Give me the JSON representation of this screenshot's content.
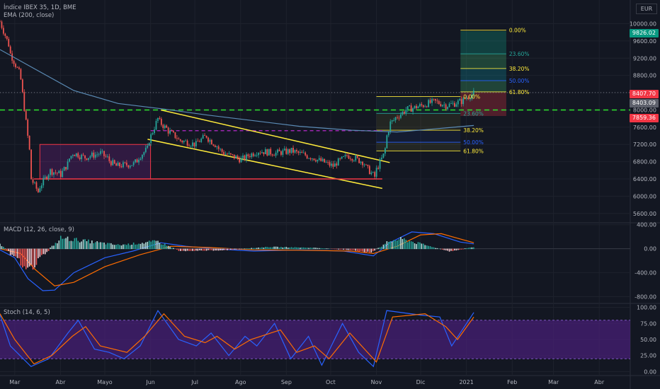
{
  "header": {
    "symbol_line": "Índice IBEX 35, 1D, BME",
    "ema_line": "EMA (200, close)",
    "currency": "EUR"
  },
  "colors": {
    "background": "#131722",
    "grid": "#1e222d",
    "up": "#26a69a",
    "down": "#ef5350",
    "ema": "#5b8bb5",
    "channel": "#ffeb3b",
    "support": "#f23645",
    "green_dash": "#2ee62e",
    "purple_dash": "#9c27b0",
    "macd_line": "#2962ff",
    "signal_line": "#ff6d00",
    "stoch_k": "#2962ff",
    "stoch_d": "#ff6d00",
    "stoch_band": "#4a1f7a"
  },
  "price_tags": [
    {
      "label": "9826.02",
      "color": "#089981"
    },
    {
      "label": "8407.70",
      "color": "#f23645"
    },
    {
      "label": "8403.09",
      "color": "#5d606b"
    },
    {
      "label": "7859.36",
      "color": "#f23645"
    }
  ],
  "fib_labels": {
    "upper": [
      "0.00%",
      "23.60%",
      "38.20%",
      "50.00%",
      "61.80%"
    ],
    "lower": [
      "0.00%",
      "23.60%",
      "38.20%",
      "50.00%",
      "61.80%"
    ]
  },
  "chart_data": [
    {
      "type": "candlestick",
      "title": "Índice IBEX 35, 1D, BME",
      "ylim": [
        5400,
        10500
      ],
      "y_ticks": [
        5600,
        6000,
        6400,
        6800,
        7200,
        7600,
        8000,
        8400,
        8800,
        9200,
        9600,
        10000
      ],
      "y_tick_labels": [
        "5600.00",
        "6000.00",
        "6400.00",
        "6800.00",
        "7200.00",
        "7600.00",
        "8000.00",
        "8400.00",
        "8800.00",
        "9200.00",
        "9600.00",
        "10000.00"
      ],
      "x_tick_labels": [
        "Mar",
        "Abr",
        "Mayo",
        "Jun",
        "Jul",
        "Ago",
        "Sep",
        "Oct",
        "Nov",
        "Dic",
        "2021",
        "Feb",
        "Mar",
        "Abr"
      ],
      "price_path": [
        [
          "2020-02-20",
          10050
        ],
        [
          "2020-02-27",
          9300
        ],
        [
          "2020-03-05",
          8700
        ],
        [
          "2020-03-12",
          6400
        ],
        [
          "2020-03-16",
          6100
        ],
        [
          "2020-03-24",
          6600
        ],
        [
          "2020-04-01",
          6500
        ],
        [
          "2020-04-09",
          7000
        ],
        [
          "2020-04-17",
          6900
        ],
        [
          "2020-04-28",
          7000
        ],
        [
          "2020-05-08",
          6700
        ],
        [
          "2020-05-20",
          6750
        ],
        [
          "2020-05-29",
          7100
        ],
        [
          "2020-06-05",
          7800
        ],
        [
          "2020-06-10",
          7600
        ],
        [
          "2020-06-20",
          7300
        ],
        [
          "2020-07-01",
          7200
        ],
        [
          "2020-07-08",
          7400
        ],
        [
          "2020-07-20",
          7000
        ],
        [
          "2020-08-01",
          6850
        ],
        [
          "2020-08-12",
          7050
        ],
        [
          "2020-08-24",
          7000
        ],
        [
          "2020-09-04",
          7050
        ],
        [
          "2020-09-18",
          6900
        ],
        [
          "2020-10-02",
          6700
        ],
        [
          "2020-10-12",
          6950
        ],
        [
          "2020-10-22",
          6800
        ],
        [
          "2020-10-30",
          6450
        ],
        [
          "2020-11-05",
          6950
        ],
        [
          "2020-11-10",
          7700
        ],
        [
          "2020-11-20",
          8000
        ],
        [
          "2020-12-01",
          8100
        ],
        [
          "2020-12-10",
          8200
        ],
        [
          "2020-12-18",
          8100
        ],
        [
          "2020-12-28",
          8200
        ],
        [
          "2021-01-06",
          8404
        ]
      ],
      "ema200_path": [
        [
          "2020-02-20",
          9400
        ],
        [
          "2020-03-12",
          9000
        ],
        [
          "2020-04-10",
          8450
        ],
        [
          "2020-05-10",
          8150
        ],
        [
          "2020-06-10",
          8020
        ],
        [
          "2020-07-10",
          7880
        ],
        [
          "2020-08-10",
          7750
        ],
        [
          "2020-09-10",
          7620
        ],
        [
          "2020-10-15",
          7530
        ],
        [
          "2020-11-15",
          7490
        ],
        [
          "2020-12-10",
          7560
        ],
        [
          "2021-01-06",
          7640
        ]
      ],
      "annotations": {
        "channel_upper": [
          [
            "2020-06-08",
            8000
          ],
          [
            "2020-11-10",
            6780
          ]
        ],
        "channel_lower": [
          [
            "2020-05-30",
            7320
          ],
          [
            "2020-11-05",
            6180
          ]
        ],
        "support_line": [
          [
            "2020-03-14",
            6400
          ],
          [
            "2020-11-05",
            6400
          ]
        ],
        "range_box": {
          "from": "2020-03-18",
          "to": "2020-06-01",
          "top": 7200,
          "bottom": 6400
        },
        "green_dashed_level": 8000,
        "purple_dashed_level": 7520,
        "price_line": 8404,
        "fib_upper": {
          "from": "2020-12-28",
          "to": "2021-01-28",
          "levels": [
            9850,
            9300,
            8960,
            8680,
            8420
          ]
        },
        "fib_lower": {
          "from": "2020-11-01",
          "to": "2020-12-28",
          "levels": [
            8310,
            7920,
            7530,
            7250,
            7050
          ]
        },
        "position_box": {
          "from": "2020-12-28",
          "to": "2021-01-28",
          "target": 9826.02,
          "entry": 8407.7,
          "stop": 7859.36
        }
      }
    },
    {
      "type": "line",
      "title": "MACD (12, 26, close, 9)",
      "ylim": [
        -900,
        420
      ],
      "y_tick_labels": [
        "400.00",
        "0.00",
        "-400.00",
        "-800.00"
      ],
      "y_ticks": [
        400,
        0,
        -400,
        -800
      ],
      "series": [
        {
          "name": "MACD",
          "points": [
            [
              "2020-02-20",
              -20
            ],
            [
              "2020-03-01",
              -150
            ],
            [
              "2020-03-10",
              -500
            ],
            [
              "2020-03-20",
              -700
            ],
            [
              "2020-03-28",
              -690
            ],
            [
              "2020-04-10",
              -400
            ],
            [
              "2020-05-01",
              -150
            ],
            [
              "2020-05-20",
              -40
            ],
            [
              "2020-06-08",
              100
            ],
            [
              "2020-06-25",
              40
            ],
            [
              "2020-07-20",
              -10
            ],
            [
              "2020-08-10",
              -40
            ],
            [
              "2020-09-10",
              -20
            ],
            [
              "2020-10-10",
              -40
            ],
            [
              "2020-10-30",
              -120
            ],
            [
              "2020-11-10",
              100
            ],
            [
              "2020-11-25",
              280
            ],
            [
              "2020-12-10",
              250
            ],
            [
              "2020-12-28",
              110
            ],
            [
              "2021-01-06",
              80
            ]
          ]
        },
        {
          "name": "Signal",
          "points": [
            [
              "2020-02-20",
              0
            ],
            [
              "2020-03-05",
              -80
            ],
            [
              "2020-03-15",
              -350
            ],
            [
              "2020-03-28",
              -620
            ],
            [
              "2020-04-10",
              -560
            ],
            [
              "2020-05-01",
              -300
            ],
            [
              "2020-05-25",
              -100
            ],
            [
              "2020-06-15",
              40
            ],
            [
              "2020-07-10",
              20
            ],
            [
              "2020-08-10",
              -20
            ],
            [
              "2020-09-10",
              -25
            ],
            [
              "2020-10-15",
              -40
            ],
            [
              "2020-10-30",
              -80
            ],
            [
              "2020-11-15",
              40
            ],
            [
              "2020-12-01",
              230
            ],
            [
              "2020-12-15",
              250
            ],
            [
              "2021-01-06",
              100
            ]
          ]
        }
      ],
      "histogram": [
        [
          "2020-02-24",
          -20
        ],
        [
          "2020-03-05",
          -250
        ],
        [
          "2020-03-12",
          -300
        ],
        [
          "2020-03-20",
          -100
        ],
        [
          "2020-04-01",
          180
        ],
        [
          "2020-04-20",
          120
        ],
        [
          "2020-05-10",
          60
        ],
        [
          "2020-06-05",
          120
        ],
        [
          "2020-06-20",
          -30
        ],
        [
          "2020-07-20",
          -20
        ],
        [
          "2020-08-20",
          30
        ],
        [
          "2020-09-20",
          15
        ],
        [
          "2020-10-15",
          -20
        ],
        [
          "2020-10-28",
          -60
        ],
        [
          "2020-11-10",
          130
        ],
        [
          "2020-11-18",
          160
        ],
        [
          "2020-12-10",
          20
        ],
        [
          "2020-12-20",
          -40
        ],
        [
          "2021-01-06",
          30
        ]
      ]
    },
    {
      "type": "line",
      "title": "Stoch (14, 6, 5)",
      "ylim": [
        -5,
        105
      ],
      "y_tick_labels": [
        "100.00",
        "75.00",
        "50.00",
        "25.00",
        "0.00"
      ],
      "y_ticks": [
        100,
        75,
        50,
        25,
        0
      ],
      "band": [
        20,
        80
      ],
      "series": [
        {
          "name": "%K",
          "points": [
            [
              "2020-02-20",
              88
            ],
            [
              "2020-02-27",
              40
            ],
            [
              "2020-03-12",
              8
            ],
            [
              "2020-03-24",
              20
            ],
            [
              "2020-04-06",
              60
            ],
            [
              "2020-04-13",
              80
            ],
            [
              "2020-04-24",
              35
            ],
            [
              "2020-05-04",
              30
            ],
            [
              "2020-05-14",
              20
            ],
            [
              "2020-05-25",
              40
            ],
            [
              "2020-06-06",
              95
            ],
            [
              "2020-06-20",
              50
            ],
            [
              "2020-07-02",
              40
            ],
            [
              "2020-07-12",
              60
            ],
            [
              "2020-07-24",
              25
            ],
            [
              "2020-08-04",
              55
            ],
            [
              "2020-08-12",
              40
            ],
            [
              "2020-08-24",
              75
            ],
            [
              "2020-09-04",
              20
            ],
            [
              "2020-09-16",
              55
            ],
            [
              "2020-09-25",
              10
            ],
            [
              "2020-10-09",
              75
            ],
            [
              "2020-10-20",
              30
            ],
            [
              "2020-10-30",
              8
            ],
            [
              "2020-11-08",
              95
            ],
            [
              "2020-12-01",
              88
            ],
            [
              "2020-12-14",
              85
            ],
            [
              "2020-12-22",
              40
            ],
            [
              "2021-01-06",
              92
            ]
          ]
        },
        {
          "name": "%D",
          "points": [
            [
              "2020-02-20",
              90
            ],
            [
              "2020-03-01",
              50
            ],
            [
              "2020-03-14",
              12
            ],
            [
              "2020-03-26",
              25
            ],
            [
              "2020-04-09",
              55
            ],
            [
              "2020-04-18",
              70
            ],
            [
              "2020-04-28",
              40
            ],
            [
              "2020-05-16",
              30
            ],
            [
              "2020-05-28",
              55
            ],
            [
              "2020-06-10",
              90
            ],
            [
              "2020-06-24",
              55
            ],
            [
              "2020-07-08",
              45
            ],
            [
              "2020-07-16",
              55
            ],
            [
              "2020-07-28",
              35
            ],
            [
              "2020-08-08",
              50
            ],
            [
              "2020-08-28",
              65
            ],
            [
              "2020-09-08",
              30
            ],
            [
              "2020-09-20",
              40
            ],
            [
              "2020-09-30",
              20
            ],
            [
              "2020-10-14",
              60
            ],
            [
              "2020-10-24",
              35
            ],
            [
              "2020-11-01",
              15
            ],
            [
              "2020-11-12",
              85
            ],
            [
              "2020-12-04",
              90
            ],
            [
              "2020-12-18",
              70
            ],
            [
              "2020-12-26",
              50
            ],
            [
              "2021-01-06",
              85
            ]
          ]
        }
      ]
    }
  ]
}
